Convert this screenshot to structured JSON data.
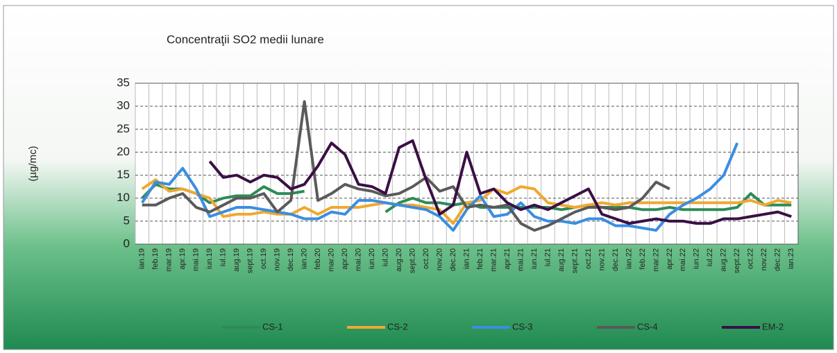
{
  "chart_data": {
    "type": "line",
    "title": "Concentraţii SO2 medii lunare",
    "y_label": "(µg/mc)",
    "categories": [
      "ian.19",
      "feb.19",
      "mar.19",
      "apr.19",
      "mai.19",
      "iun.19",
      "iul.19",
      "aug.19",
      "sept.19",
      "oct.19",
      "nov.19",
      "dec.19",
      "ian.20",
      "feb.20",
      "mar.20",
      "apr.20",
      "mai.20",
      "iun.20",
      "iul.20",
      "aug.20",
      "sept.20",
      "oct.20",
      "nov.20",
      "dec.20",
      "ian.21",
      "feb.21",
      "mar.21",
      "apr.21",
      "mai.21",
      "iun.21",
      "iul.21",
      "aug.21",
      "sept.21",
      "oct.21",
      "nov.21",
      "dec.21",
      "ian.22",
      "feb.22",
      "mar.22",
      "apr.22",
      "mai.22",
      "iun.22",
      "iul.22",
      "aug.22",
      "sept.22",
      "oct.22",
      "nov.22",
      "dec.22",
      "ian.23"
    ],
    "series": [
      {
        "name": "CS-1",
        "color": "#2e8b57",
        "values": [
          10,
          13,
          12,
          12,
          11,
          9,
          10,
          10.5,
          10.5,
          12.5,
          11,
          11,
          11.5,
          null,
          null,
          null,
          null,
          null,
          7,
          9,
          10,
          9,
          9,
          8.5,
          9,
          8,
          8,
          8,
          8,
          8,
          8,
          7.5,
          8,
          8.5,
          8,
          8,
          8,
          7.5,
          7.5,
          8,
          7.5,
          7.5,
          7.5,
          7.5,
          8,
          11,
          8.5,
          8.5,
          8.5
        ]
      },
      {
        "name": "CS-2",
        "color": "#f0a830",
        "values": [
          12,
          14,
          11.5,
          12,
          11,
          10,
          6,
          6.5,
          6.5,
          7,
          6.5,
          6.5,
          8,
          6.5,
          8,
          8,
          8,
          8.5,
          9,
          8.5,
          8.5,
          8,
          7.5,
          4.5,
          9,
          9.5,
          12,
          11,
          12.5,
          12,
          9,
          8.5,
          8,
          8.5,
          9,
          8.5,
          9,
          9,
          9,
          9,
          9,
          9,
          9,
          9,
          9,
          9.5,
          8.5,
          9.5,
          9
        ]
      },
      {
        "name": "CS-3",
        "color": "#3a8ee0",
        "values": [
          9,
          13.5,
          13,
          16.5,
          12,
          6,
          7,
          8,
          8,
          7.5,
          7,
          6.5,
          5.5,
          5.5,
          7,
          6.5,
          9.5,
          9.5,
          9,
          8.5,
          8,
          7.5,
          6,
          3,
          7.5,
          10.5,
          6,
          6.5,
          9,
          6,
          5,
          5,
          4.5,
          5.5,
          5.5,
          4,
          4,
          3.5,
          3,
          6.5,
          8.5,
          10,
          12,
          15,
          22,
          null,
          null,
          null,
          null
        ]
      },
      {
        "name": "CS-4",
        "color": "#5a5a5a",
        "values": [
          8.5,
          8.5,
          10,
          11,
          8,
          7,
          8.5,
          10,
          10,
          11,
          7,
          9.5,
          31,
          9.5,
          11,
          13,
          12,
          11.5,
          10.5,
          11,
          12.5,
          14.5,
          11.5,
          12.5,
          8,
          8.5,
          8,
          8.5,
          4.5,
          3,
          4,
          5.5,
          7,
          8,
          8,
          7.5,
          8,
          10,
          13.5,
          12,
          null,
          null,
          null,
          null,
          null,
          null,
          null,
          null,
          null
        ]
      },
      {
        "name": "EM-2",
        "color": "#3a0f45",
        "values": [
          null,
          null,
          null,
          null,
          null,
          18,
          14.5,
          15,
          13.5,
          15,
          14.5,
          12,
          13,
          17,
          22,
          19.5,
          13,
          12.5,
          11,
          21,
          22.5,
          14,
          6.5,
          8.5,
          20,
          11,
          12,
          9,
          7.5,
          8.5,
          7.5,
          9,
          10.5,
          12,
          6.5,
          5.5,
          4.5,
          5,
          5.5,
          5,
          5,
          4.5,
          4.5,
          5.5,
          5.5,
          6,
          6.5,
          7,
          6
        ]
      }
    ],
    "ylim": [
      0,
      35
    ],
    "yticks": [
      0,
      5,
      10,
      15,
      20,
      25,
      30,
      35
    ],
    "grid": true
  }
}
